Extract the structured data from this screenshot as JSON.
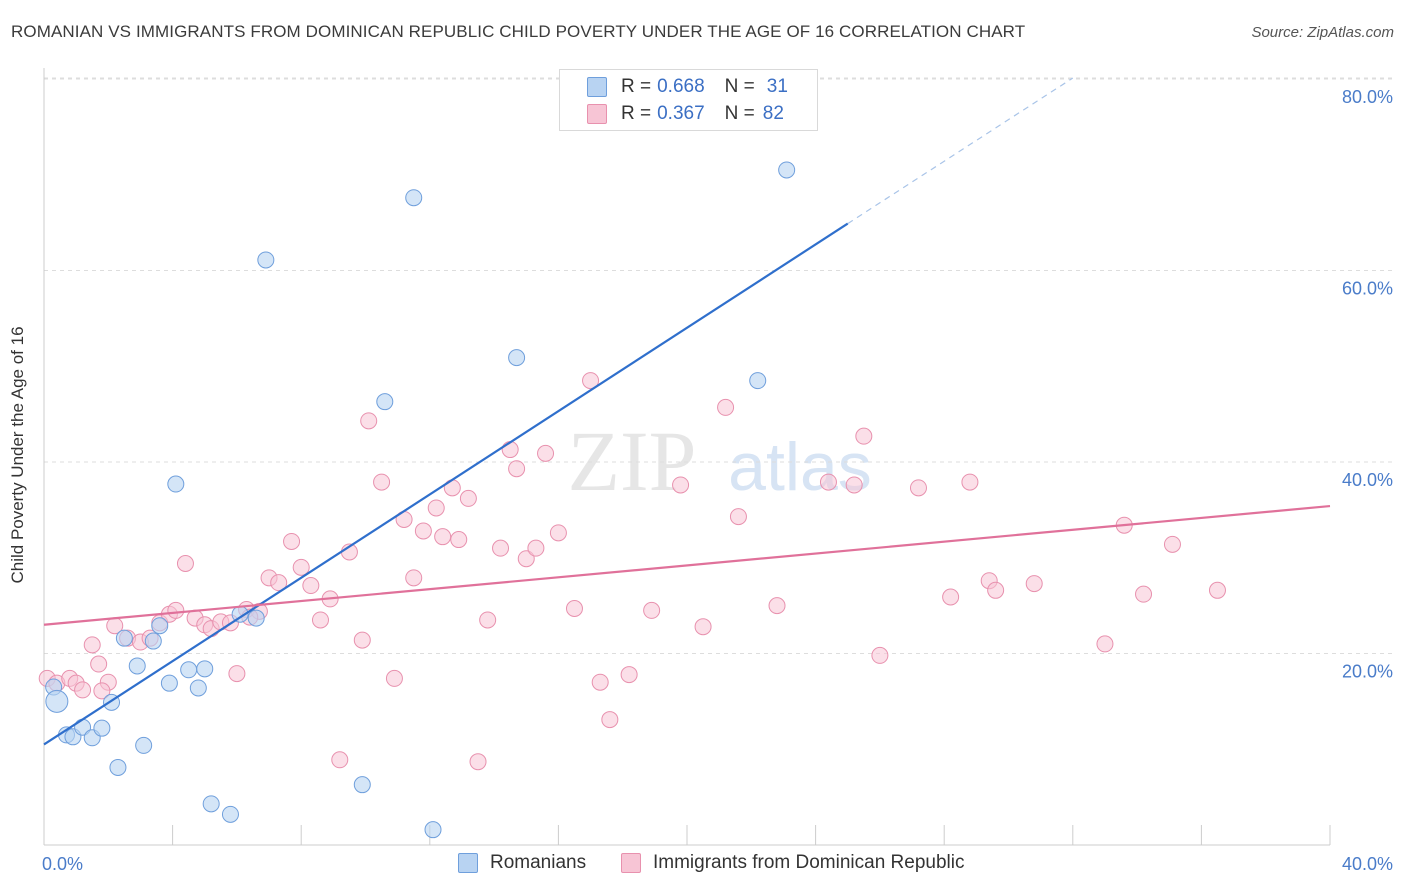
{
  "title": "ROMANIAN VS IMMIGRANTS FROM DOMINICAN REPUBLIC CHILD POVERTY UNDER THE AGE OF 16 CORRELATION CHART",
  "source": "Source: ZipAtlas.com",
  "watermark": {
    "zip": "ZIP",
    "atlas": "atlas"
  },
  "legend": {
    "romanians": {
      "r_label": "R =",
      "r_value": "0.668",
      "n_label": "N =",
      "n_value": "31"
    },
    "dominican": {
      "r_label": "R =",
      "r_value": "0.367",
      "n_label": "N =",
      "n_value": "82"
    }
  },
  "bottom_legend": {
    "romanians": "Romanians",
    "dominican": "Immigrants from Dominican Republic"
  },
  "colors": {
    "blue_fill": "#b8d3f2",
    "blue_stroke": "#6f9fdc",
    "blue_line": "#2f6fcc",
    "pink_fill": "#f7c5d5",
    "pink_stroke": "#e891ae",
    "pink_line": "#e0719a",
    "tick_text": "#4a7cc9",
    "grid": "#dddddd"
  },
  "chart_data": {
    "type": "scatter",
    "title": "ROMANIAN VS IMMIGRANTS FROM DOMINICAN REPUBLIC CHILD POVERTY UNDER THE AGE OF 16 CORRELATION CHART",
    "xlabel": "",
    "ylabel": "Child Poverty Under the Age of 16",
    "xlim": [
      0,
      40
    ],
    "ylim": [
      0,
      80
    ],
    "x_ticks": [
      "0.0%",
      "40.0%"
    ],
    "y_ticks": [
      "20.0%",
      "40.0%",
      "60.0%",
      "80.0%"
    ],
    "y_tick_values": [
      20,
      40,
      60,
      80
    ],
    "series": [
      {
        "name": "Romanians",
        "points": [
          [
            0.3,
            16.5
          ],
          [
            0.4,
            15.0
          ],
          [
            0.7,
            11.5
          ],
          [
            0.9,
            11.3
          ],
          [
            1.2,
            12.3
          ],
          [
            1.5,
            11.2
          ],
          [
            1.8,
            12.2
          ],
          [
            2.1,
            14.9
          ],
          [
            2.3,
            8.1
          ],
          [
            2.5,
            21.6
          ],
          [
            2.9,
            18.7
          ],
          [
            3.1,
            10.4
          ],
          [
            3.4,
            21.3
          ],
          [
            3.6,
            22.9
          ],
          [
            3.9,
            16.9
          ],
          [
            4.1,
            37.7
          ],
          [
            4.5,
            18.3
          ],
          [
            4.8,
            16.4
          ],
          [
            5.0,
            18.4
          ],
          [
            5.2,
            4.3
          ],
          [
            5.8,
            3.2
          ],
          [
            6.1,
            24.1
          ],
          [
            6.6,
            23.7
          ],
          [
            6.9,
            61.1
          ],
          [
            9.9,
            6.3
          ],
          [
            10.6,
            46.3
          ],
          [
            11.5,
            67.6
          ],
          [
            12.1,
            1.6
          ],
          [
            14.7,
            50.9
          ],
          [
            22.2,
            48.5
          ],
          [
            23.1,
            70.5
          ]
        ],
        "trend": {
          "x": [
            0.0,
            25.0
          ],
          "y": [
            10.5,
            64.9
          ],
          "dashed_x": [
            25.0,
            32.0
          ],
          "dashed_y": [
            64.9,
            80.1
          ]
        }
      },
      {
        "name": "Immigrants from Dominican Republic",
        "points": [
          [
            0.1,
            17.4
          ],
          [
            0.4,
            16.9
          ],
          [
            0.8,
            17.4
          ],
          [
            1.0,
            16.9
          ],
          [
            1.2,
            16.2
          ],
          [
            1.5,
            20.9
          ],
          [
            1.7,
            18.9
          ],
          [
            2.0,
            17.0
          ],
          [
            2.2,
            22.9
          ],
          [
            2.6,
            21.6
          ],
          [
            3.0,
            21.2
          ],
          [
            3.3,
            21.6
          ],
          [
            3.6,
            23.2
          ],
          [
            3.9,
            24.1
          ],
          [
            4.1,
            24.5
          ],
          [
            4.4,
            29.4
          ],
          [
            4.7,
            23.7
          ],
          [
            5.0,
            23.0
          ],
          [
            5.2,
            22.6
          ],
          [
            5.5,
            23.3
          ],
          [
            5.8,
            23.2
          ],
          [
            6.0,
            17.9
          ],
          [
            6.3,
            24.6
          ],
          [
            6.7,
            24.4
          ],
          [
            7.0,
            27.9
          ],
          [
            7.3,
            27.4
          ],
          [
            7.7,
            31.7
          ],
          [
            8.0,
            29.0
          ],
          [
            8.3,
            27.1
          ],
          [
            8.6,
            23.5
          ],
          [
            8.9,
            25.7
          ],
          [
            9.2,
            8.9
          ],
          [
            9.5,
            30.6
          ],
          [
            9.9,
            21.4
          ],
          [
            10.1,
            44.3
          ],
          [
            10.5,
            37.9
          ],
          [
            10.9,
            17.4
          ],
          [
            11.2,
            34.0
          ],
          [
            11.5,
            27.9
          ],
          [
            11.8,
            32.8
          ],
          [
            12.2,
            35.2
          ],
          [
            12.4,
            32.2
          ],
          [
            12.7,
            37.3
          ],
          [
            12.9,
            31.9
          ],
          [
            13.2,
            36.2
          ],
          [
            13.5,
            8.7
          ],
          [
            13.8,
            23.5
          ],
          [
            14.2,
            31.0
          ],
          [
            14.5,
            41.3
          ],
          [
            14.7,
            39.3
          ],
          [
            15.0,
            29.9
          ],
          [
            15.3,
            31.0
          ],
          [
            15.6,
            40.9
          ],
          [
            16.0,
            32.6
          ],
          [
            16.5,
            24.7
          ],
          [
            17.0,
            48.5
          ],
          [
            17.3,
            17.0
          ],
          [
            17.6,
            13.1
          ],
          [
            18.2,
            17.8
          ],
          [
            18.9,
            24.5
          ],
          [
            19.8,
            37.6
          ],
          [
            20.5,
            22.8
          ],
          [
            21.2,
            45.7
          ],
          [
            21.6,
            34.3
          ],
          [
            22.8,
            25.0
          ],
          [
            24.4,
            37.9
          ],
          [
            25.2,
            37.6
          ],
          [
            25.5,
            42.7
          ],
          [
            26.0,
            19.8
          ],
          [
            27.2,
            37.3
          ],
          [
            28.2,
            25.9
          ],
          [
            28.8,
            37.9
          ],
          [
            29.4,
            27.6
          ],
          [
            29.6,
            26.6
          ],
          [
            30.8,
            27.3
          ],
          [
            33.0,
            21.0
          ],
          [
            33.6,
            33.4
          ],
          [
            34.2,
            26.2
          ],
          [
            35.1,
            31.4
          ],
          [
            36.5,
            26.6
          ],
          [
            1.8,
            16.1
          ],
          [
            6.4,
            23.8
          ]
        ],
        "trend": {
          "x": [
            0.0,
            40.0
          ],
          "y": [
            23.0,
            35.4
          ]
        }
      }
    ]
  }
}
